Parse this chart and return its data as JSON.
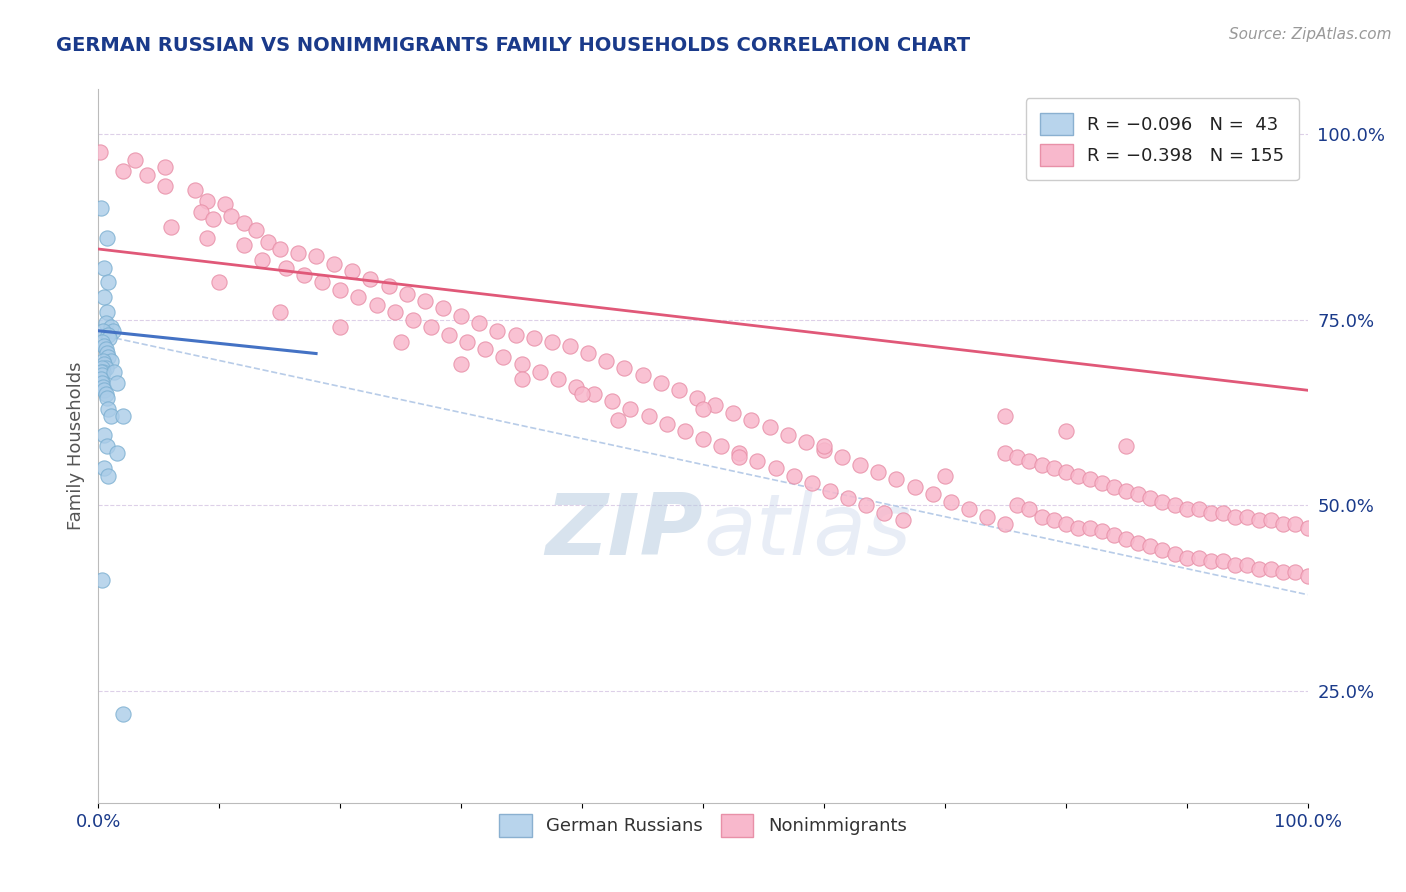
{
  "title": "GERMAN RUSSIAN VS NONIMMIGRANTS FAMILY HOUSEHOLDS CORRELATION CHART",
  "source": "Source: ZipAtlas.com",
  "ylabel": "Family Households",
  "legend_r_blue": "R = -0.096",
  "legend_n_blue": "N =  43",
  "legend_r_pink": "R = -0.398",
  "legend_n_pink": "N = 155",
  "bottom_legend": [
    "German Russians",
    "Nonimmigrants"
  ],
  "blue_scatter": [
    [
      0.002,
      0.9
    ],
    [
      0.007,
      0.86
    ],
    [
      0.005,
      0.82
    ],
    [
      0.008,
      0.8
    ],
    [
      0.005,
      0.78
    ],
    [
      0.007,
      0.76
    ],
    [
      0.006,
      0.745
    ],
    [
      0.01,
      0.74
    ],
    [
      0.012,
      0.735
    ],
    [
      0.004,
      0.735
    ],
    [
      0.008,
      0.73
    ],
    [
      0.009,
      0.725
    ],
    [
      0.003,
      0.72
    ],
    [
      0.005,
      0.715
    ],
    [
      0.006,
      0.71
    ],
    [
      0.007,
      0.705
    ],
    [
      0.008,
      0.7
    ],
    [
      0.01,
      0.695
    ],
    [
      0.004,
      0.695
    ],
    [
      0.005,
      0.69
    ],
    [
      0.006,
      0.685
    ],
    [
      0.003,
      0.685
    ],
    [
      0.004,
      0.68
    ],
    [
      0.002,
      0.68
    ],
    [
      0.003,
      0.675
    ],
    [
      0.002,
      0.67
    ],
    [
      0.003,
      0.665
    ],
    [
      0.004,
      0.66
    ],
    [
      0.005,
      0.655
    ],
    [
      0.006,
      0.65
    ],
    [
      0.007,
      0.645
    ],
    [
      0.013,
      0.68
    ],
    [
      0.015,
      0.665
    ],
    [
      0.008,
      0.63
    ],
    [
      0.01,
      0.62
    ],
    [
      0.02,
      0.62
    ],
    [
      0.005,
      0.595
    ],
    [
      0.007,
      0.58
    ],
    [
      0.015,
      0.57
    ],
    [
      0.005,
      0.55
    ],
    [
      0.008,
      0.54
    ],
    [
      0.003,
      0.4
    ],
    [
      0.02,
      0.22
    ]
  ],
  "pink_scatter": [
    [
      0.001,
      0.975
    ],
    [
      0.03,
      0.965
    ],
    [
      0.055,
      0.955
    ],
    [
      0.02,
      0.95
    ],
    [
      0.04,
      0.945
    ],
    [
      0.055,
      0.93
    ],
    [
      0.08,
      0.925
    ],
    [
      0.09,
      0.91
    ],
    [
      0.105,
      0.905
    ],
    [
      0.085,
      0.895
    ],
    [
      0.11,
      0.89
    ],
    [
      0.095,
      0.885
    ],
    [
      0.12,
      0.88
    ],
    [
      0.06,
      0.875
    ],
    [
      0.13,
      0.87
    ],
    [
      0.09,
      0.86
    ],
    [
      0.14,
      0.855
    ],
    [
      0.12,
      0.85
    ],
    [
      0.15,
      0.845
    ],
    [
      0.165,
      0.84
    ],
    [
      0.18,
      0.835
    ],
    [
      0.135,
      0.83
    ],
    [
      0.195,
      0.825
    ],
    [
      0.155,
      0.82
    ],
    [
      0.21,
      0.815
    ],
    [
      0.17,
      0.81
    ],
    [
      0.225,
      0.805
    ],
    [
      0.185,
      0.8
    ],
    [
      0.24,
      0.795
    ],
    [
      0.2,
      0.79
    ],
    [
      0.255,
      0.785
    ],
    [
      0.215,
      0.78
    ],
    [
      0.27,
      0.775
    ],
    [
      0.23,
      0.77
    ],
    [
      0.285,
      0.765
    ],
    [
      0.245,
      0.76
    ],
    [
      0.3,
      0.755
    ],
    [
      0.26,
      0.75
    ],
    [
      0.315,
      0.745
    ],
    [
      0.275,
      0.74
    ],
    [
      0.33,
      0.735
    ],
    [
      0.345,
      0.73
    ],
    [
      0.36,
      0.725
    ],
    [
      0.29,
      0.73
    ],
    [
      0.375,
      0.72
    ],
    [
      0.305,
      0.72
    ],
    [
      0.39,
      0.715
    ],
    [
      0.32,
      0.71
    ],
    [
      0.405,
      0.705
    ],
    [
      0.335,
      0.7
    ],
    [
      0.42,
      0.695
    ],
    [
      0.35,
      0.69
    ],
    [
      0.435,
      0.685
    ],
    [
      0.365,
      0.68
    ],
    [
      0.45,
      0.675
    ],
    [
      0.38,
      0.67
    ],
    [
      0.465,
      0.665
    ],
    [
      0.395,
      0.66
    ],
    [
      0.48,
      0.655
    ],
    [
      0.41,
      0.65
    ],
    [
      0.495,
      0.645
    ],
    [
      0.425,
      0.64
    ],
    [
      0.51,
      0.635
    ],
    [
      0.44,
      0.63
    ],
    [
      0.525,
      0.625
    ],
    [
      0.455,
      0.62
    ],
    [
      0.54,
      0.615
    ],
    [
      0.47,
      0.61
    ],
    [
      0.555,
      0.605
    ],
    [
      0.485,
      0.6
    ],
    [
      0.57,
      0.595
    ],
    [
      0.5,
      0.59
    ],
    [
      0.585,
      0.585
    ],
    [
      0.515,
      0.58
    ],
    [
      0.6,
      0.575
    ],
    [
      0.53,
      0.57
    ],
    [
      0.615,
      0.565
    ],
    [
      0.545,
      0.56
    ],
    [
      0.63,
      0.555
    ],
    [
      0.56,
      0.55
    ],
    [
      0.645,
      0.545
    ],
    [
      0.575,
      0.54
    ],
    [
      0.66,
      0.535
    ],
    [
      0.59,
      0.53
    ],
    [
      0.675,
      0.525
    ],
    [
      0.605,
      0.52
    ],
    [
      0.69,
      0.515
    ],
    [
      0.62,
      0.51
    ],
    [
      0.705,
      0.505
    ],
    [
      0.635,
      0.5
    ],
    [
      0.72,
      0.495
    ],
    [
      0.65,
      0.49
    ],
    [
      0.735,
      0.485
    ],
    [
      0.665,
      0.48
    ],
    [
      0.75,
      0.475
    ],
    [
      0.76,
      0.5
    ],
    [
      0.77,
      0.495
    ],
    [
      0.78,
      0.485
    ],
    [
      0.79,
      0.48
    ],
    [
      0.8,
      0.475
    ],
    [
      0.81,
      0.47
    ],
    [
      0.82,
      0.47
    ],
    [
      0.83,
      0.465
    ],
    [
      0.84,
      0.46
    ],
    [
      0.85,
      0.455
    ],
    [
      0.86,
      0.45
    ],
    [
      0.87,
      0.445
    ],
    [
      0.88,
      0.44
    ],
    [
      0.89,
      0.435
    ],
    [
      0.9,
      0.43
    ],
    [
      0.91,
      0.43
    ],
    [
      0.92,
      0.425
    ],
    [
      0.93,
      0.425
    ],
    [
      0.94,
      0.42
    ],
    [
      0.95,
      0.42
    ],
    [
      0.96,
      0.415
    ],
    [
      0.97,
      0.415
    ],
    [
      0.98,
      0.41
    ],
    [
      0.99,
      0.41
    ],
    [
      1.0,
      0.405
    ],
    [
      0.75,
      0.57
    ],
    [
      0.76,
      0.565
    ],
    [
      0.77,
      0.56
    ],
    [
      0.78,
      0.555
    ],
    [
      0.79,
      0.55
    ],
    [
      0.8,
      0.545
    ],
    [
      0.81,
      0.54
    ],
    [
      0.82,
      0.535
    ],
    [
      0.83,
      0.53
    ],
    [
      0.84,
      0.525
    ],
    [
      0.85,
      0.52
    ],
    [
      0.86,
      0.515
    ],
    [
      0.87,
      0.51
    ],
    [
      0.88,
      0.505
    ],
    [
      0.89,
      0.5
    ],
    [
      0.9,
      0.495
    ],
    [
      0.91,
      0.495
    ],
    [
      0.92,
      0.49
    ],
    [
      0.93,
      0.49
    ],
    [
      0.94,
      0.485
    ],
    [
      0.95,
      0.485
    ],
    [
      0.96,
      0.48
    ],
    [
      0.97,
      0.48
    ],
    [
      0.98,
      0.475
    ],
    [
      0.99,
      0.475
    ],
    [
      1.0,
      0.47
    ],
    [
      0.5,
      0.63
    ],
    [
      0.6,
      0.58
    ],
    [
      0.7,
      0.54
    ],
    [
      0.3,
      0.69
    ],
    [
      0.4,
      0.65
    ],
    [
      0.2,
      0.74
    ],
    [
      0.1,
      0.8
    ],
    [
      0.15,
      0.76
    ],
    [
      0.75,
      0.62
    ],
    [
      0.8,
      0.6
    ],
    [
      0.85,
      0.58
    ],
    [
      0.43,
      0.615
    ],
    [
      0.53,
      0.565
    ],
    [
      0.25,
      0.72
    ],
    [
      0.35,
      0.67
    ]
  ],
  "blue_line": [
    [
      0.0,
      0.735
    ],
    [
      1.0,
      0.565
    ]
  ],
  "pink_line": [
    [
      0.0,
      0.845
    ],
    [
      1.0,
      0.655
    ]
  ],
  "dashed_line": [
    [
      0.0,
      0.73
    ],
    [
      1.0,
      0.38
    ]
  ],
  "scatter_size": 120,
  "blue_fill_color": "#aacce8",
  "blue_edge_color": "#7aaed0",
  "pink_fill_color": "#f8b8cc",
  "pink_edge_color": "#e890a8",
  "blue_line_color": "#4472c4",
  "pink_line_color": "#e05878",
  "dashed_line_color": "#b8cce8",
  "background_color": "#ffffff",
  "grid_color": "#ddd0e8",
  "title_color": "#1a3a8a",
  "source_color": "#999999",
  "axis_label_color": "#1a3a8a",
  "ylabel_color": "#555555",
  "xlim": [
    0.0,
    1.0
  ],
  "ylim": [
    0.1,
    1.06
  ],
  "right_y_ticks": [
    0.25,
    0.5,
    0.75,
    1.0
  ],
  "right_y_tick_labels": [
    "25.0%",
    "50.0%",
    "75.0%",
    "100.0%"
  ],
  "x_ticks": [
    0.0,
    0.1,
    0.2,
    0.3,
    0.4,
    0.5,
    0.6,
    0.7,
    0.8,
    0.9,
    1.0
  ],
  "x_tick_labels_list": [
    "0.0%",
    "",
    "",
    "",
    "",
    "",
    "",
    "",
    "",
    "",
    "100.0%"
  ],
  "watermark_zip": "ZIP",
  "watermark_atlas": "atlas",
  "watermark_color_zip": "#c8d8ec",
  "watermark_color_atlas": "#c8d8ec"
}
